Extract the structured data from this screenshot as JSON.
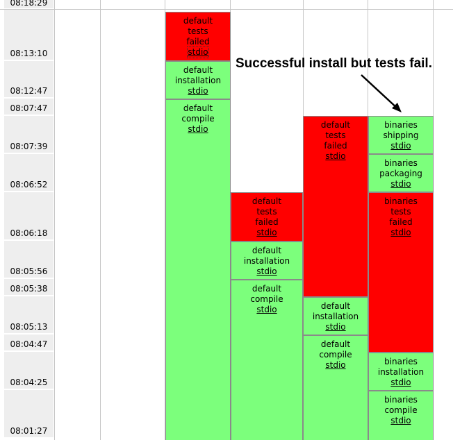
{
  "times": [
    "08:18:29",
    "08:13:10",
    "08:12:47",
    "08:07:47",
    "08:07:39",
    "08:06:52",
    "08:06:18",
    "08:05:56",
    "08:05:38",
    "08:05:13",
    "08:04:47",
    "08:04:25",
    "08:01:27"
  ],
  "columns": {
    "col1": [
      {
        "lines": [
          "default",
          "tests",
          "failed"
        ],
        "link": "stdio",
        "status": "fail"
      },
      {
        "lines": [
          "default",
          "installation"
        ],
        "link": "stdio",
        "status": "pass"
      },
      {
        "lines": [
          "default",
          "compile"
        ],
        "link": "stdio",
        "status": "pass"
      }
    ],
    "col2": [
      {
        "lines": [
          "default",
          "tests",
          "failed"
        ],
        "link": "stdio",
        "status": "fail"
      },
      {
        "lines": [
          "default",
          "installation"
        ],
        "link": "stdio",
        "status": "pass"
      },
      {
        "lines": [
          "default",
          "compile"
        ],
        "link": "stdio",
        "status": "pass"
      }
    ],
    "col3": [
      {
        "lines": [
          "default",
          "tests",
          "failed"
        ],
        "link": "stdio",
        "status": "fail"
      },
      {
        "lines": [
          "default",
          "installation"
        ],
        "link": "stdio",
        "status": "pass"
      },
      {
        "lines": [
          "default",
          "compile"
        ],
        "link": "stdio",
        "status": "pass"
      }
    ],
    "col4": [
      {
        "lines": [
          "binaries",
          "shipping"
        ],
        "link": "stdio",
        "status": "pass"
      },
      {
        "lines": [
          "binaries",
          "packaging"
        ],
        "link": "stdio",
        "status": "pass"
      },
      {
        "lines": [
          "binaries",
          "tests",
          "failed"
        ],
        "link": "stdio",
        "status": "fail"
      },
      {
        "lines": [
          "binaries",
          "installation"
        ],
        "link": "stdio",
        "status": "pass"
      },
      {
        "lines": [
          "binaries",
          "compile"
        ],
        "link": "stdio",
        "status": "pass"
      }
    ]
  },
  "annotation": "Successful install but tests fail.",
  "colors": {
    "pass": "#7cff7c",
    "fail": "#ff0000",
    "time_bg": "#eeeeee",
    "grid": "#c6c6c6"
  }
}
